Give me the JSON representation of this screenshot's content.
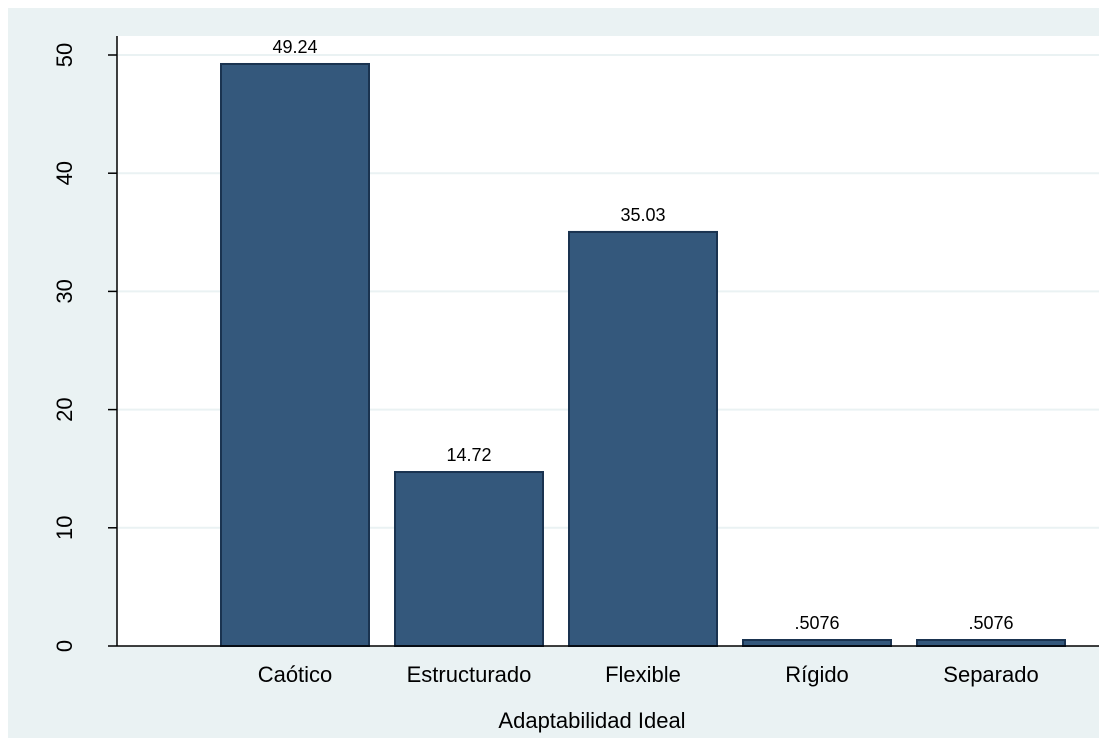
{
  "colors": {
    "page_background": "#ffffff",
    "outer_background": "#eaf2f3",
    "plot_background": "#ffffff",
    "bar_fill": "#34587c",
    "bar_stroke": "#1a3350",
    "grid": "#eaf2f3",
    "axis": "#000000"
  },
  "chart_data": {
    "type": "bar",
    "title": "",
    "xlabel": "Adaptabilidad Ideal",
    "ylabel": "",
    "categories": [
      "Caótico",
      "Estructurado",
      "Flexible",
      "Rígido",
      "Separado"
    ],
    "values": [
      49.24,
      14.72,
      35.03,
      0.5076,
      0.5076
    ],
    "value_labels": [
      "49.24",
      "14.72",
      "35.03",
      ".5076",
      ".5076"
    ],
    "ylim": [
      0,
      50
    ],
    "yticks": [
      0,
      10,
      20,
      30,
      40,
      50
    ],
    "ytick_labels": [
      "0",
      "10",
      "20",
      "30",
      "40",
      "50"
    ],
    "grid": true,
    "legend": "none"
  }
}
